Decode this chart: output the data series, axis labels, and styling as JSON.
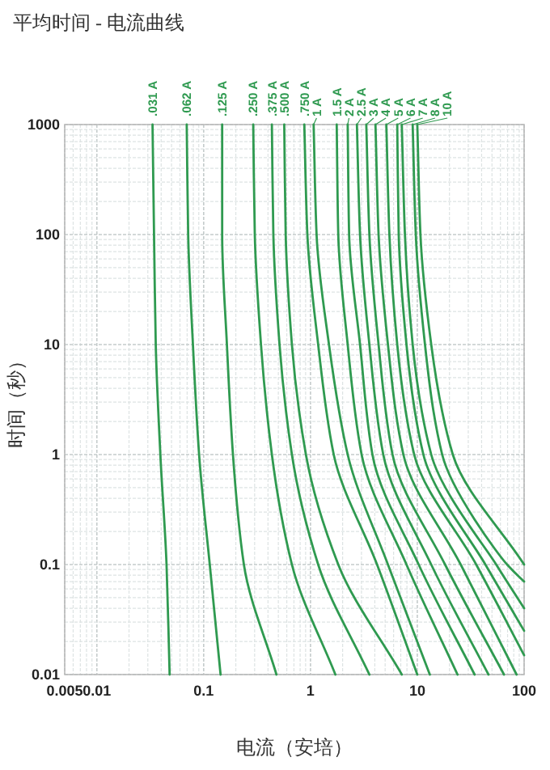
{
  "chart_data": {
    "type": "line",
    "title": "平均时间 - 电流曲线",
    "xlabel": "电流（安培）",
    "ylabel": "时间（秒）",
    "log": "xy",
    "grid": true,
    "marker": "none",
    "line_style": "solid",
    "xlim": [
      0.005,
      100
    ],
    "ylim": [
      0.01,
      1000
    ],
    "xticks": [
      0.005,
      0.01,
      0.1,
      1,
      10,
      100
    ],
    "yticks": [
      0.01,
      0.1,
      1,
      10,
      100,
      1000
    ],
    "series": [
      {
        "name": ".031 A",
        "color": "#2f9a50",
        "x": [
          0.0332,
          0.0343,
          0.0356,
          0.0393,
          0.0449,
          0.048
        ],
        "values": [
          1000,
          100,
          10,
          1,
          0.1,
          0.01
        ]
      },
      {
        "name": ".062 A",
        "color": "#2f9a50",
        "x": [
          0.0694,
          0.0716,
          0.0793,
          0.0906,
          0.114,
          0.144
        ],
        "values": [
          1000,
          100,
          10,
          1,
          0.1,
          0.01
        ]
      },
      {
        "name": ".125 A",
        "color": "#2f9a50",
        "x": [
          0.149,
          0.149,
          0.165,
          0.188,
          0.238,
          0.48
        ],
        "values": [
          1000,
          100,
          10,
          1,
          0.1,
          0.01
        ]
      },
      {
        "name": ".250 A",
        "color": "#2f9a50",
        "x": [
          0.291,
          0.301,
          0.344,
          0.435,
          0.67,
          1.71
        ],
        "values": [
          1000,
          100,
          10,
          1,
          0.1,
          0.01
        ]
      },
      {
        "name": ".375 A",
        "color": "#2f9a50",
        "x": [
          0.435,
          0.449,
          0.513,
          0.67,
          1.18,
          3.56
        ],
        "values": [
          1000,
          100,
          10,
          1,
          0.1,
          0.01
        ]
      },
      {
        "name": ".500 A",
        "color": "#2f9a50",
        "x": [
          0.568,
          0.586,
          0.67,
          0.906,
          1.82,
          7.16
        ],
        "values": [
          1000,
          100,
          10,
          1,
          0.1,
          0.01
        ]
      },
      {
        "name": ".750 A",
        "color": "#2f9a50",
        "x": [
          0.875,
          0.935,
          1.18,
          1.65,
          4.2,
          10
        ],
        "values": [
          1000,
          100,
          10,
          1,
          0.1,
          0.01
        ]
      },
      {
        "name": "1 A",
        "color": "#2f9a50",
        "x": [
          1.07,
          1.14,
          1.49,
          2.23,
          5.31,
          13.1
        ],
        "values": [
          1000,
          100,
          10,
          1,
          0.1,
          0.01
        ]
      },
      {
        "name": "1.5 A",
        "color": "#2f9a50",
        "x": [
          1.76,
          1.82,
          2.23,
          3.01,
          7.92,
          23.8
        ],
        "values": [
          1000,
          100,
          10,
          1,
          0.1,
          0.01
        ]
      },
      {
        "name": "2 A",
        "color": "#2f9a50",
        "x": [
          2.23,
          2.3,
          2.91,
          3.8,
          10.3,
          34.4
        ],
        "values": [
          1000,
          100,
          10,
          1,
          0.1,
          0.01
        ]
      },
      {
        "name": "2.5 A",
        "color": "#2f9a50",
        "x": [
          2.72,
          2.91,
          3.56,
          4.8,
          13.5,
          46.4
        ],
        "values": [
          1000,
          100,
          10,
          1,
          0.1,
          0.01
        ]
      },
      {
        "name": "3 A",
        "color": "#2f9a50",
        "x": [
          3.33,
          3.56,
          4.34,
          5.86,
          18.2,
          64.8
        ],
        "values": [
          1000,
          100,
          10,
          1,
          0.1,
          0.01
        ]
      },
      {
        "name": "4 A",
        "color": "#2f9a50",
        "x": [
          4.06,
          4.34,
          5.31,
          7.41,
          25.5,
          85
        ],
        "values": [
          1000,
          100,
          10,
          1,
          0.1,
          0.01
        ]
      },
      {
        "name": "5 A",
        "color": "#2f9a50",
        "x": [
          5.13,
          5.48,
          6.49,
          9.35,
          35.6,
          100
        ],
        "values": [
          1000,
          100,
          10,
          1,
          0.1,
          0.015
        ]
      },
      {
        "name": "6 A",
        "color": "#2f9a50",
        "x": [
          6.49,
          6.7,
          7.92,
          11.4,
          43.4,
          100
        ],
        "values": [
          1000,
          100,
          10,
          1,
          0.1,
          0.025
        ]
      },
      {
        "name": "7 A",
        "color": "#2f9a50",
        "x": [
          7.16,
          7.66,
          9.05,
          13.5,
          54.8,
          100
        ],
        "values": [
          1000,
          100,
          10,
          1,
          0.1,
          0.04
        ]
      },
      {
        "name": "8 A",
        "color": "#2f9a50",
        "x": [
          9.05,
          9.68,
          11.8,
          17.1,
          69.3,
          100
        ],
        "values": [
          1000,
          100,
          10,
          1,
          0.1,
          0.07
        ]
      },
      {
        "name": "10 A",
        "color": "#2f9a50",
        "x": [
          10,
          10.7,
          13.5,
          21.5,
          100
        ],
        "values": [
          1000,
          100,
          10,
          1,
          0.1
        ]
      }
    ]
  }
}
